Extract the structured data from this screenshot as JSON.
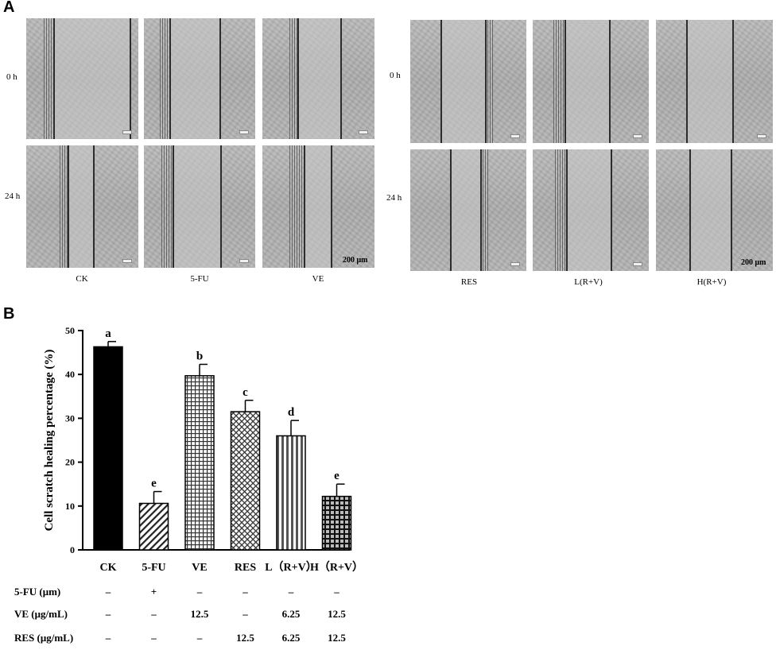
{
  "panel_a": {
    "letter": "A",
    "row_labels": [
      "0 h",
      "24 h"
    ],
    "left_group": {
      "columns": [
        "CK",
        "5-FU",
        "VE"
      ],
      "scale_bar_label": "200 μm"
    },
    "right_group": {
      "columns": [
        "RES",
        "L(R+V)",
        "H(R+V)"
      ],
      "scale_bar_label": "200 μm"
    }
  },
  "panel_b": {
    "letter": "B",
    "treatments": {
      "rows": [
        {
          "label": "5-FU (μm)",
          "values": [
            "–",
            "+",
            "–",
            "–",
            "–",
            "–"
          ]
        },
        {
          "label": "VE (μg/mL)",
          "values": [
            "–",
            "–",
            "12.5",
            "–",
            "6.25",
            "12.5"
          ]
        },
        {
          "label": "RES (μg/mL)",
          "values": [
            "–",
            "–",
            "–",
            "12.5",
            "6.25",
            "12.5"
          ]
        }
      ]
    }
  },
  "chart_data": {
    "type": "bar",
    "title": "",
    "xlabel": "",
    "ylabel": "Cell scratch healing percentage (%)",
    "ylim": [
      0,
      50
    ],
    "yticks": [
      0,
      10,
      20,
      30,
      40,
      50
    ],
    "categories": [
      "CK",
      "5-FU",
      "VE",
      "RES",
      "L（R+V）",
      "H（R+V）"
    ],
    "values": [
      46.3,
      10.6,
      39.7,
      31.5,
      26.0,
      12.2
    ],
    "errors": [
      1.2,
      2.7,
      2.6,
      2.6,
      3.5,
      2.8
    ],
    "significance_letters": [
      "a",
      "e",
      "b",
      "c",
      "d",
      "e"
    ],
    "fill_patterns": [
      "solid-black",
      "diagonal-hatch",
      "grid-white",
      "crosshatch-diagonal",
      "vertical-stripes",
      "grid-dark"
    ],
    "grid": false,
    "legend": "none"
  }
}
